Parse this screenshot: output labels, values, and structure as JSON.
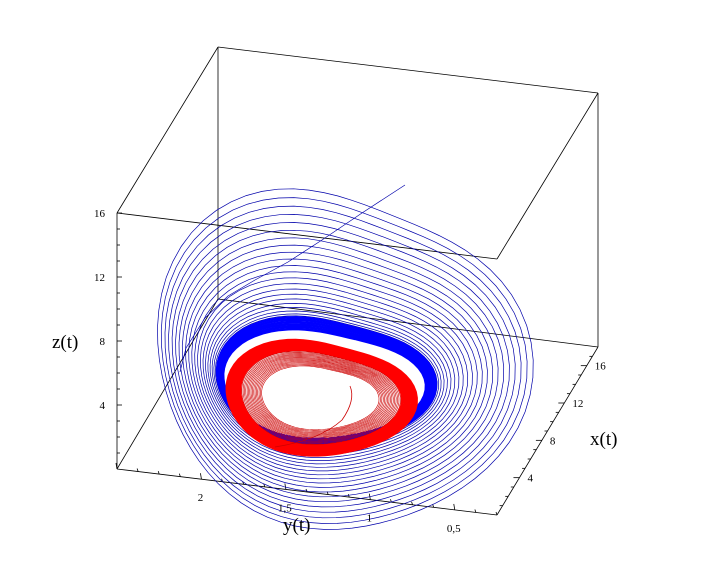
{
  "chart_data": {
    "type": "line",
    "projection": "3d",
    "axes": {
      "x": {
        "label": "x(t)",
        "ticks": [
          {
            "value": 4,
            "label": "4"
          },
          {
            "value": 8,
            "label": "8"
          },
          {
            "value": 12,
            "label": "12"
          },
          {
            "value": 16,
            "label": "16"
          }
        ],
        "range": [
          0,
          18
        ]
      },
      "y": {
        "label": "y(t)",
        "ticks": [
          {
            "value": 2,
            "label": "2"
          },
          {
            "value": 1.5,
            "label": "1,5"
          },
          {
            "value": 1,
            "label": "1"
          },
          {
            "value": 0.5,
            "label": "0,5"
          }
        ],
        "range": [
          0.25,
          2.5
        ]
      },
      "z": {
        "label": "z(t)",
        "ticks": [
          {
            "value": 4,
            "label": "4"
          },
          {
            "value": 8,
            "label": "8"
          },
          {
            "value": 12,
            "label": "12"
          },
          {
            "value": 16,
            "label": "16"
          }
        ],
        "range": [
          0,
          16
        ]
      }
    },
    "grid": false,
    "series": [
      {
        "color": "#0000aa",
        "bold_color": "#0000ff",
        "description": "blue trajectory spiralling inward from high z onto an outer limit cycle"
      },
      {
        "color": "#cc0000",
        "bold_color": "#ff0000",
        "description": "red trajectory spiralling outward from the interior onto an inner limit cycle"
      }
    ]
  }
}
